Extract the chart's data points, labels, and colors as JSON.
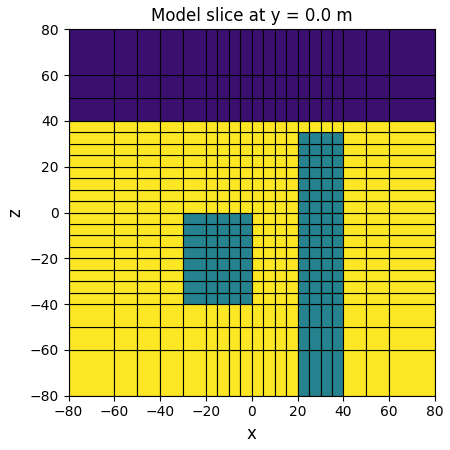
{
  "title": "Model slice at y = 0.0 m",
  "xlabel": "x",
  "ylabel": "z",
  "xlim": [
    -80,
    80
  ],
  "zlim": [
    -80,
    80
  ],
  "color_purple": "#3b0f70",
  "color_yellow": "#fde725",
  "color_teal": "#26828e",
  "background": "#ffffff",
  "x_edges": [
    -80,
    -60,
    -50,
    -40,
    -30,
    -20,
    -15,
    -10,
    -5,
    0,
    5,
    10,
    15,
    20,
    25,
    30,
    35,
    40,
    50,
    60,
    80
  ],
  "z_edges": [
    -80,
    -60,
    -50,
    -40,
    -35,
    -30,
    -25,
    -20,
    -15,
    -10,
    -5,
    0,
    5,
    10,
    15,
    20,
    25,
    30,
    35,
    40,
    50,
    60,
    80
  ],
  "figsize": [
    4.5,
    4.5
  ],
  "dpi": 100
}
